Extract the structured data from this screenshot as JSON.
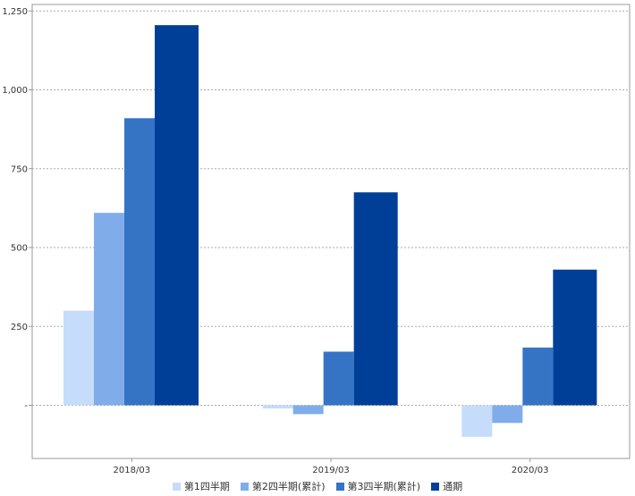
{
  "chart_data": {
    "type": "bar",
    "categories": [
      "2018/03",
      "2019/03",
      "2020/03"
    ],
    "series": [
      {
        "name": "第1四半期",
        "color": "#c5dcfa",
        "values": [
          300,
          -10,
          -100
        ]
      },
      {
        "name": "第2四半期(累計)",
        "color": "#80adea",
        "values": [
          610,
          -28,
          -56
        ]
      },
      {
        "name": "第3四半期(累計)",
        "color": "#3574c5",
        "values": [
          910,
          170,
          183
        ]
      },
      {
        "name": "通期",
        "color": "#003f98",
        "values": [
          1205,
          675,
          430
        ]
      }
    ],
    "yticks": [
      "-",
      "250",
      "500",
      "750",
      "1,000",
      "1,250"
    ],
    "ylim": [
      -175,
      1265
    ],
    "grid": true,
    "legend_position": "bottom"
  }
}
